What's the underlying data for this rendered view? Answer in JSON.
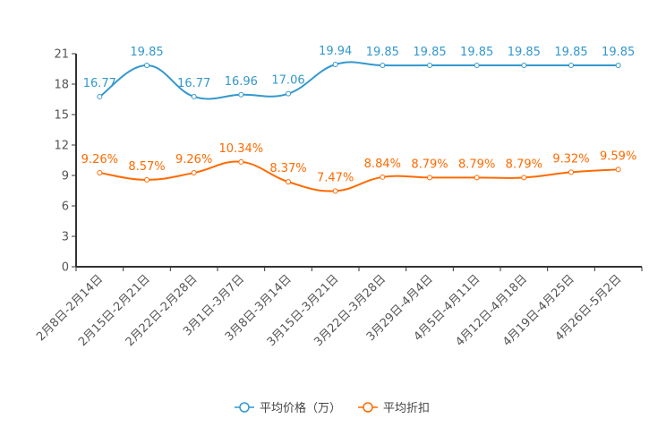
{
  "chart_data": {
    "type": "line",
    "categories": [
      "2月8日-2月14日",
      "2月15日-2月21日",
      "2月22日-2月28日",
      "3月1日-3月7日",
      "3月8日-3月14日",
      "3月15日-3月21日",
      "3月22日-3月28日",
      "3月29日-4月4日",
      "4月5日-4月11日",
      "4月12日-4月18日",
      "4月19日-4月25日",
      "4月26日-5月2日"
    ],
    "ylim": [
      0,
      21
    ],
    "yticks": [
      0,
      3,
      6,
      9,
      12,
      15,
      18,
      21
    ],
    "smooth": true,
    "series": [
      {
        "name": "平均价格（万）",
        "color": "#3398cc",
        "values": [
          16.77,
          19.85,
          16.77,
          16.96,
          17.06,
          19.94,
          19.85,
          19.85,
          19.85,
          19.85,
          19.85,
          19.85
        ],
        "labels": [
          "16.77",
          "19.85",
          "16.77",
          "16.96",
          "17.06",
          "19.94",
          "19.85",
          "19.85",
          "19.85",
          "19.85",
          "19.85",
          "19.85"
        ]
      },
      {
        "name": "平均折扣",
        "color": "#ff6a00",
        "values": [
          9.26,
          8.57,
          9.26,
          10.34,
          8.37,
          7.47,
          8.84,
          8.79,
          8.79,
          8.79,
          9.32,
          9.59
        ],
        "labels": [
          "9.26%",
          "8.57%",
          "9.26%",
          "10.34%",
          "8.37%",
          "7.47%",
          "8.84%",
          "8.79%",
          "8.79%",
          "8.79%",
          "9.32%",
          "9.59%"
        ]
      }
    ],
    "legend_position": "bottom-center"
  }
}
